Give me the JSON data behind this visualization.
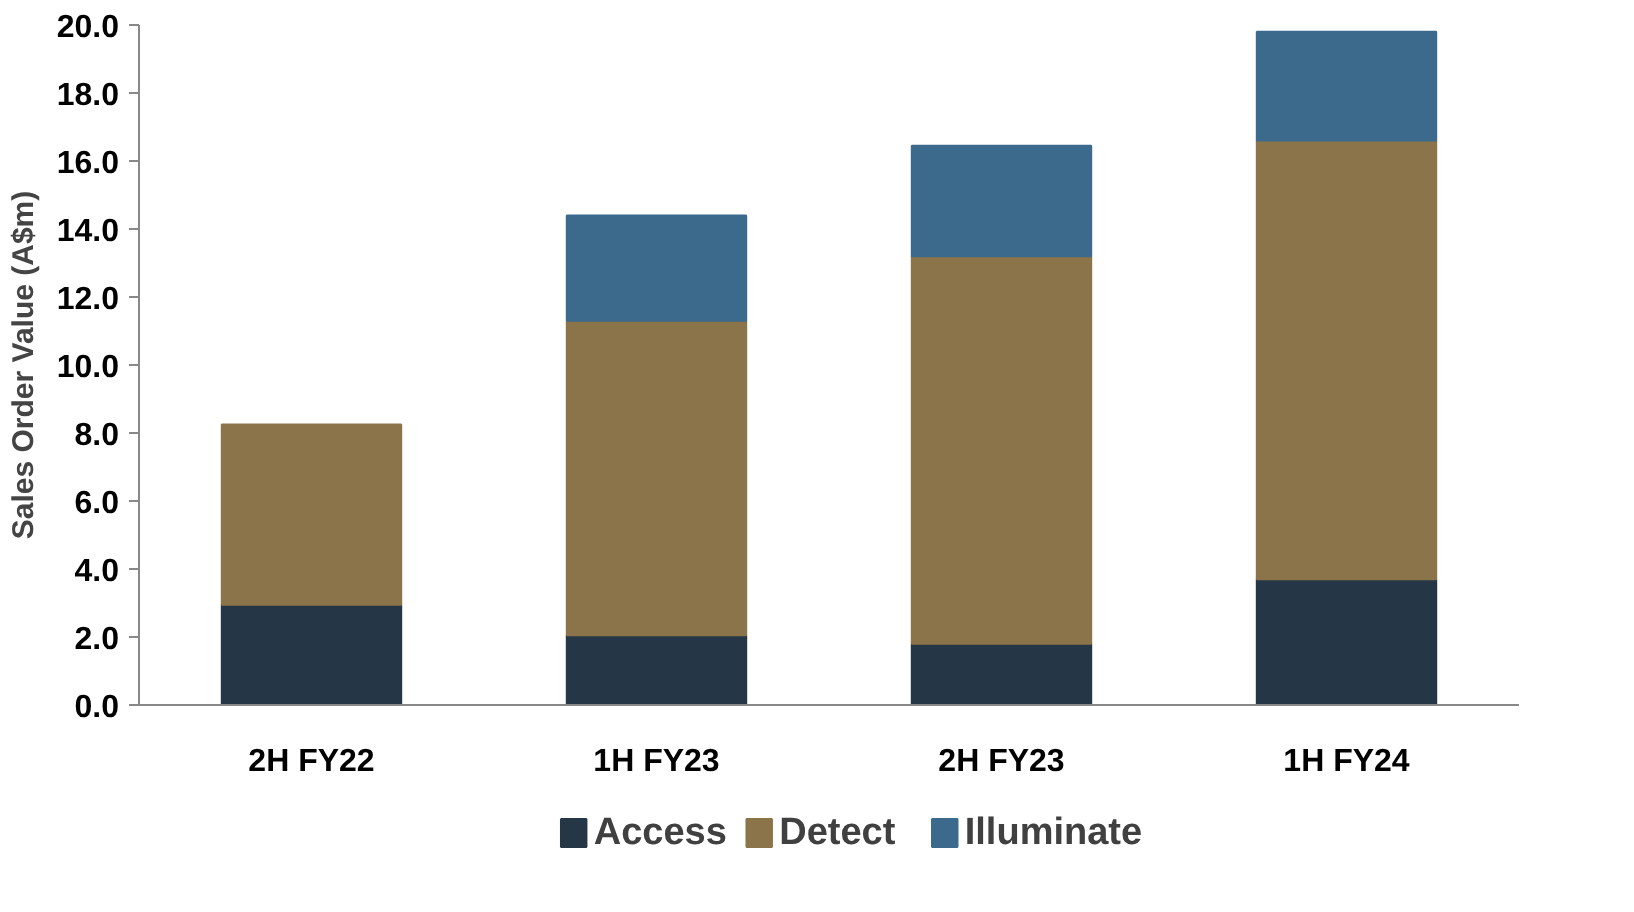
{
  "chart_data": {
    "type": "bar",
    "stacked": true,
    "ylabel": "Sales Order Value (A$m)",
    "categories": [
      "2H FY22",
      "1H FY23",
      "2H FY23",
      "1H FY24"
    ],
    "series": [
      {
        "name": "Access",
        "color": "#253746",
        "values": [
          2.95,
          2.05,
          1.8,
          3.7
        ]
      },
      {
        "name": "Detect",
        "color": "#8b744a",
        "values": [
          5.3,
          9.25,
          11.4,
          12.9
        ]
      },
      {
        "name": "Illuminate",
        "color": "#3b6a8c",
        "values": [
          null,
          3.1,
          3.25,
          3.2
        ]
      }
    ],
    "ylim": [
      0,
      20
    ],
    "yticks": [
      {
        "value": 0,
        "label": "0.0"
      },
      {
        "value": 2,
        "label": "2.0"
      },
      {
        "value": 4,
        "label": "4.0"
      },
      {
        "value": 6,
        "label": "6.0"
      },
      {
        "value": 8,
        "label": "8.0"
      },
      {
        "value": 10,
        "label": "10.0"
      },
      {
        "value": 12,
        "label": "12.0"
      },
      {
        "value": 14,
        "label": "14.0"
      },
      {
        "value": 16,
        "label": "16.0"
      },
      {
        "value": 18,
        "label": "18.0"
      },
      {
        "value": 20,
        "label": "20.0"
      }
    ],
    "grid": false,
    "legend": "bottom"
  }
}
